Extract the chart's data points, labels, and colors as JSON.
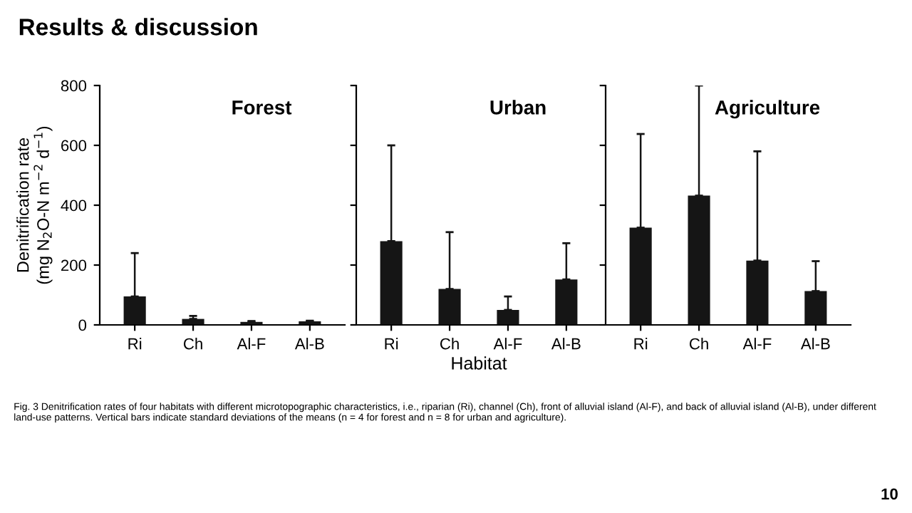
{
  "chart_data": [
    {
      "type": "bar",
      "title": "Forest",
      "ylabel": "Denitrification rate\n(mg N$_{2}$O-N m$^{−2}$ d$^{−1}$)",
      "categories": [
        "Ri",
        "Ch",
        "Al-F",
        "Al-B"
      ],
      "values": [
        95,
        20,
        10,
        12
      ],
      "errors": [
        [
          95,
          240
        ],
        [
          20,
          30
        ],
        [
          10,
          13
        ],
        [
          12,
          14
        ]
      ],
      "color": "#151515",
      "ylim": [
        0,
        800
      ],
      "yticks": [
        0,
        200,
        400,
        600,
        800
      ],
      "grid": false,
      "legend": false,
      "annotations": [
        "Results & discussion",
        "Fig. 3 Denitrification rates of four habitats with different microtopographic characteristics, i.e., riparian (Ri), channel (Ch), front of alluvial island (Al-F), and back of alluvial island (Al-B), under different land-use patterns. Vertical bars indicate standard deviations of the means (n = 4 for forest and n = 8 for urban and agriculture).",
        "10"
      ]
    },
    {
      "type": "bar",
      "title": "Urban",
      "xlabel": "Habitat",
      "categories": [
        "Ri",
        "Ch",
        "Al-F",
        "Al-B"
      ],
      "values": [
        280,
        120,
        50,
        152
      ],
      "errors": [
        [
          280,
          600
        ],
        [
          120,
          310
        ],
        [
          50,
          95
        ],
        [
          152,
          273
        ]
      ],
      "color": "#151515",
      "ylim": [
        0,
        800
      ],
      "yticks": [
        0,
        200,
        400,
        600,
        800
      ],
      "tick_labels": "x",
      "grid": false,
      "legend": false
    },
    {
      "type": "bar",
      "title": "Agriculture",
      "categories": [
        "Ri",
        "Ch",
        "Al-F",
        "Al-B"
      ],
      "values": [
        325,
        432,
        215,
        113
      ],
      "errors": [
        [
          325,
          638
        ],
        [
          432,
          800
        ],
        [
          215,
          580
        ],
        [
          113,
          213
        ]
      ],
      "color": "#151515",
      "ylim": [
        0,
        800
      ],
      "yticks": [
        0,
        200,
        400,
        600,
        800
      ],
      "tick_labels": "x",
      "grid": false,
      "legend": false
    }
  ]
}
